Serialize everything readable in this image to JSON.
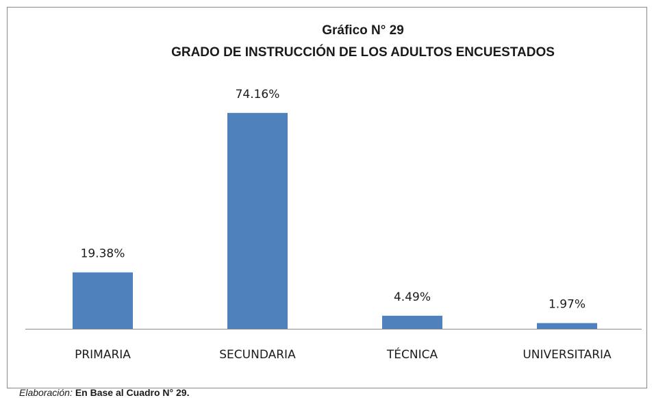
{
  "chart_data": {
    "type": "bar",
    "title": "Gráfico N° 29",
    "subtitle": "GRADO DE INSTRUCCIÓN DE LOS ADULTOS ENCUESTADOS",
    "categories": [
      "PRIMARIA",
      "SECUNDARIA",
      "TÉCNICA",
      "UNIVERSITARIA"
    ],
    "values": [
      19.38,
      74.16,
      4.49,
      1.97
    ],
    "value_labels": [
      "19.38%",
      "74.16%",
      "4.49%",
      "1.97%"
    ],
    "color": "#4f81bd",
    "ylim": [
      0,
      80
    ],
    "source_label": "Elaboración:",
    "source": "En Base al Cuadro N° 29."
  }
}
